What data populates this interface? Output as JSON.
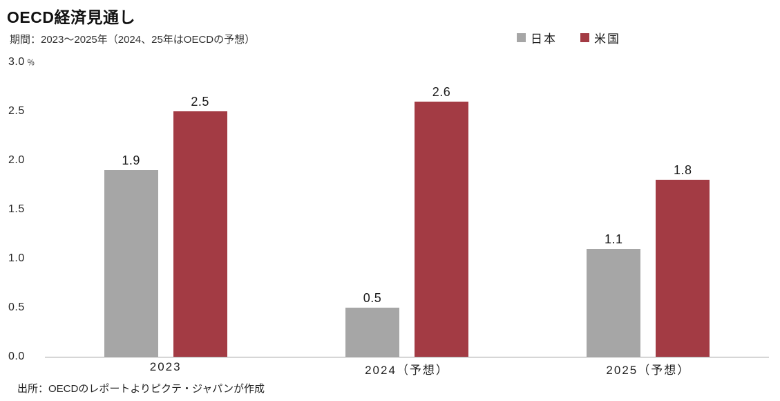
{
  "title": "OECD経済見通し",
  "subtitle": "期間：2023～2025年（2024、25年はOECDの予想）",
  "source": "出所：OECDのレポートよりピクテ・ジャパンが作成",
  "chart_data": {
    "type": "bar",
    "title": "OECD経済見通し",
    "subtitle": "期間：2023～2025年（2024、25年はOECDの予想）",
    "categories": [
      "2023",
      "2024（予想）",
      "2025（予想）"
    ],
    "series": [
      {
        "name": "日本",
        "color": "#a6a6a6",
        "values": [
          1.9,
          0.5,
          1.1
        ]
      },
      {
        "name": "米国",
        "color": "#a33b44",
        "values": [
          2.5,
          2.6,
          1.8
        ]
      }
    ],
    "ylim": [
      0,
      3.0
    ],
    "yticks": [
      "0.0",
      "0.5",
      "1.0",
      "1.5",
      "2.0",
      "2.5",
      "3.0"
    ],
    "unit": "％",
    "grid": false,
    "legend_position": "top-right",
    "source": "出所：OECDのレポートよりピクテ・ジャパンが作成"
  }
}
